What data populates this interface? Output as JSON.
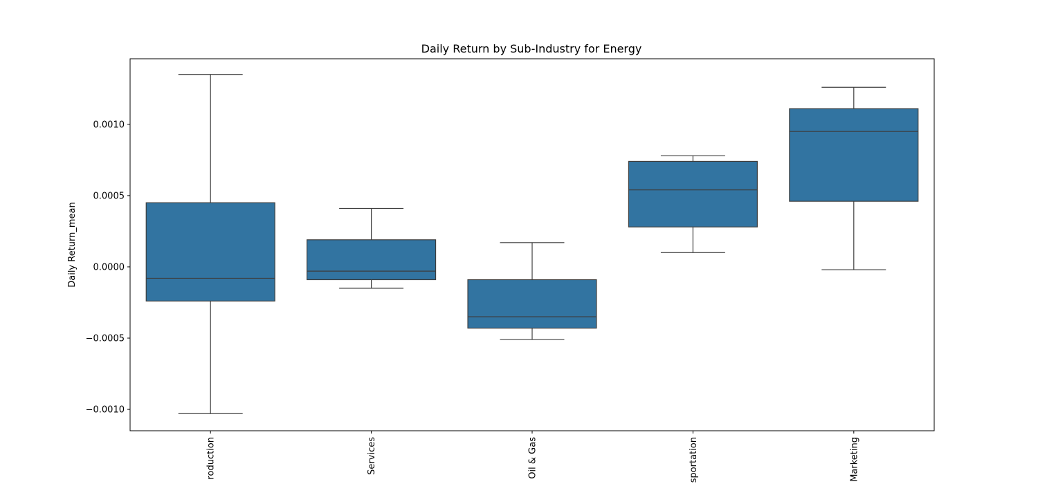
{
  "chart_data": {
    "type": "box",
    "title": "Daily Return by Sub-Industry for Energy",
    "xlabel": "",
    "ylabel": "Daily Return_mean",
    "ylim": [
      -0.00115,
      0.00146
    ],
    "yticks": [
      -0.001,
      -0.0005,
      0.0,
      0.0005,
      0.001
    ],
    "ytick_labels": [
      "−0.0010",
      "−0.0005",
      "0.0000",
      "0.0005",
      "0.0010"
    ],
    "categories": [
      "roduction",
      " Services",
      "Oil & Gas",
      "sportation",
      "Marketing"
    ],
    "box_color": "#3274a1",
    "line_color": "#3d3d3d",
    "boxes": [
      {
        "whisker_low": -0.00103,
        "q1": -0.00024,
        "median": -8e-05,
        "q3": 0.00045,
        "whisker_high": 0.00135
      },
      {
        "whisker_low": -0.00015,
        "q1": -9e-05,
        "median": -3e-05,
        "q3": 0.00019,
        "whisker_high": 0.00041
      },
      {
        "whisker_low": -0.00051,
        "q1": -0.00043,
        "median": -0.00035,
        "q3": -9e-05,
        "whisker_high": 0.00017
      },
      {
        "whisker_low": 0.0001,
        "q1": 0.00028,
        "median": 0.00054,
        "q3": 0.00074,
        "whisker_high": 0.00078
      },
      {
        "whisker_low": -2e-05,
        "q1": 0.00046,
        "median": 0.00095,
        "q3": 0.00111,
        "whisker_high": 0.00126
      }
    ],
    "grid": false,
    "legend": "none"
  }
}
